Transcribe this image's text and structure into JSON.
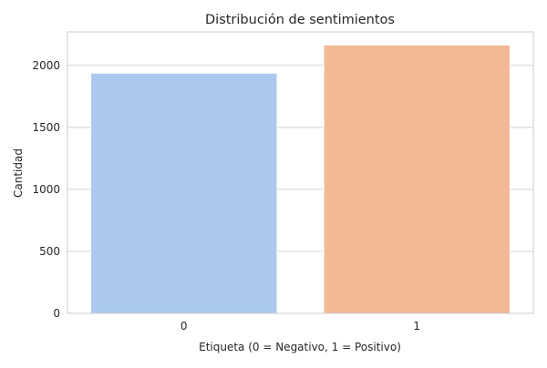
{
  "chart_data": {
    "type": "bar",
    "title": "Distribución de sentimientos",
    "xlabel": "Etiqueta (0 = Negativo, 1 = Positivo)",
    "ylabel": "Cantidad",
    "categories": [
      "0",
      "1"
    ],
    "values": [
      1937,
      2164
    ],
    "ylim": [
      0,
      2270
    ],
    "yticks": [
      0,
      500,
      1000,
      1500,
      2000
    ],
    "bar_colors": [
      "#abc9ee",
      "#f2b994"
    ],
    "grid": true,
    "legend": "none"
  },
  "colors": {
    "grid": "#d4d4d4",
    "frame": "#cccccc",
    "background": "#ffffff"
  }
}
